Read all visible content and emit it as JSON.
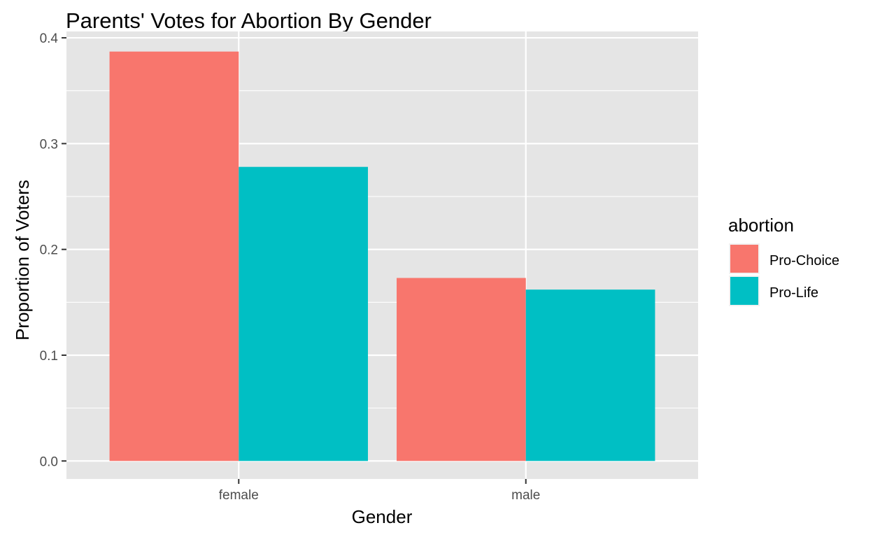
{
  "chart_data": {
    "type": "bar",
    "title": "Parents' Votes for Abortion By Gender",
    "xlabel": "Gender",
    "ylabel": "Proportion of Voters",
    "categories": [
      "female",
      "male"
    ],
    "series": [
      {
        "name": "Pro-Choice",
        "color": "#F8766D",
        "values": [
          0.387,
          0.173
        ]
      },
      {
        "name": "Pro-Life",
        "color": "#00BFC4",
        "values": [
          0.278,
          0.162
        ]
      }
    ],
    "ylim": [
      -0.017,
      0.406
    ],
    "yticks": [
      0.0,
      0.1,
      0.2,
      0.3,
      0.4
    ],
    "ytick_labels": [
      "0.0",
      "0.1",
      "0.2",
      "0.3",
      "0.4"
    ],
    "grid": true,
    "legend": {
      "title": "abortion",
      "position": "right"
    },
    "panel_background": "#E5E5E5"
  }
}
